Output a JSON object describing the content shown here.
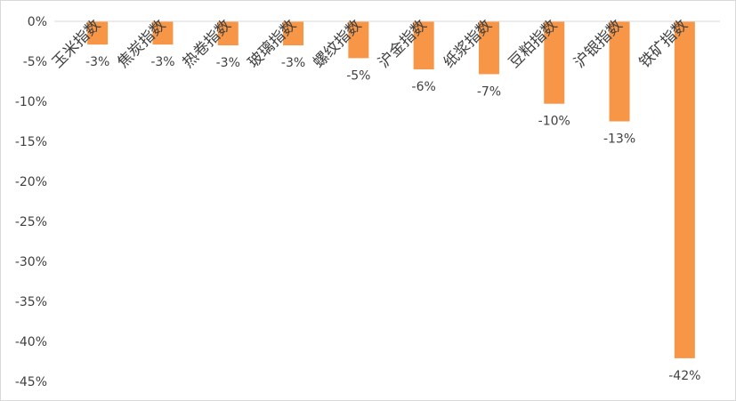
{
  "chart_data": {
    "type": "bar",
    "title": "",
    "xlabel": "",
    "ylabel": "",
    "categories": [
      "玉米指数",
      "焦炭指数",
      "热卷指数",
      "玻璃指数",
      "螺纹指数",
      "沪金指数",
      "纸浆指数",
      "豆粕指数",
      "沪银指数",
      "铁矿指数"
    ],
    "values": [
      -2.9,
      -2.9,
      -3.0,
      -3.0,
      -4.6,
      -6.0,
      -6.6,
      -10.3,
      -12.5,
      -42.1
    ],
    "data_labels": [
      "-3%",
      "-3%",
      "-3%",
      "-3%",
      "-5%",
      "-6%",
      "-7%",
      "-10%",
      "-13%",
      "-42%"
    ],
    "y_ticks": [
      0,
      -5,
      -10,
      -15,
      -20,
      -25,
      -30,
      -35,
      -40,
      -45
    ],
    "y_tick_labels": [
      "0%",
      "-5%",
      "-10%",
      "-15%",
      "-20%",
      "-25%",
      "-30%",
      "-35%",
      "-40%",
      "-45%"
    ],
    "ylim": [
      -45,
      0
    ],
    "grid": false,
    "legend": "none",
    "bar_color": "#F79646",
    "axis_color": "#d9d9d9",
    "text_color": "#404040"
  }
}
